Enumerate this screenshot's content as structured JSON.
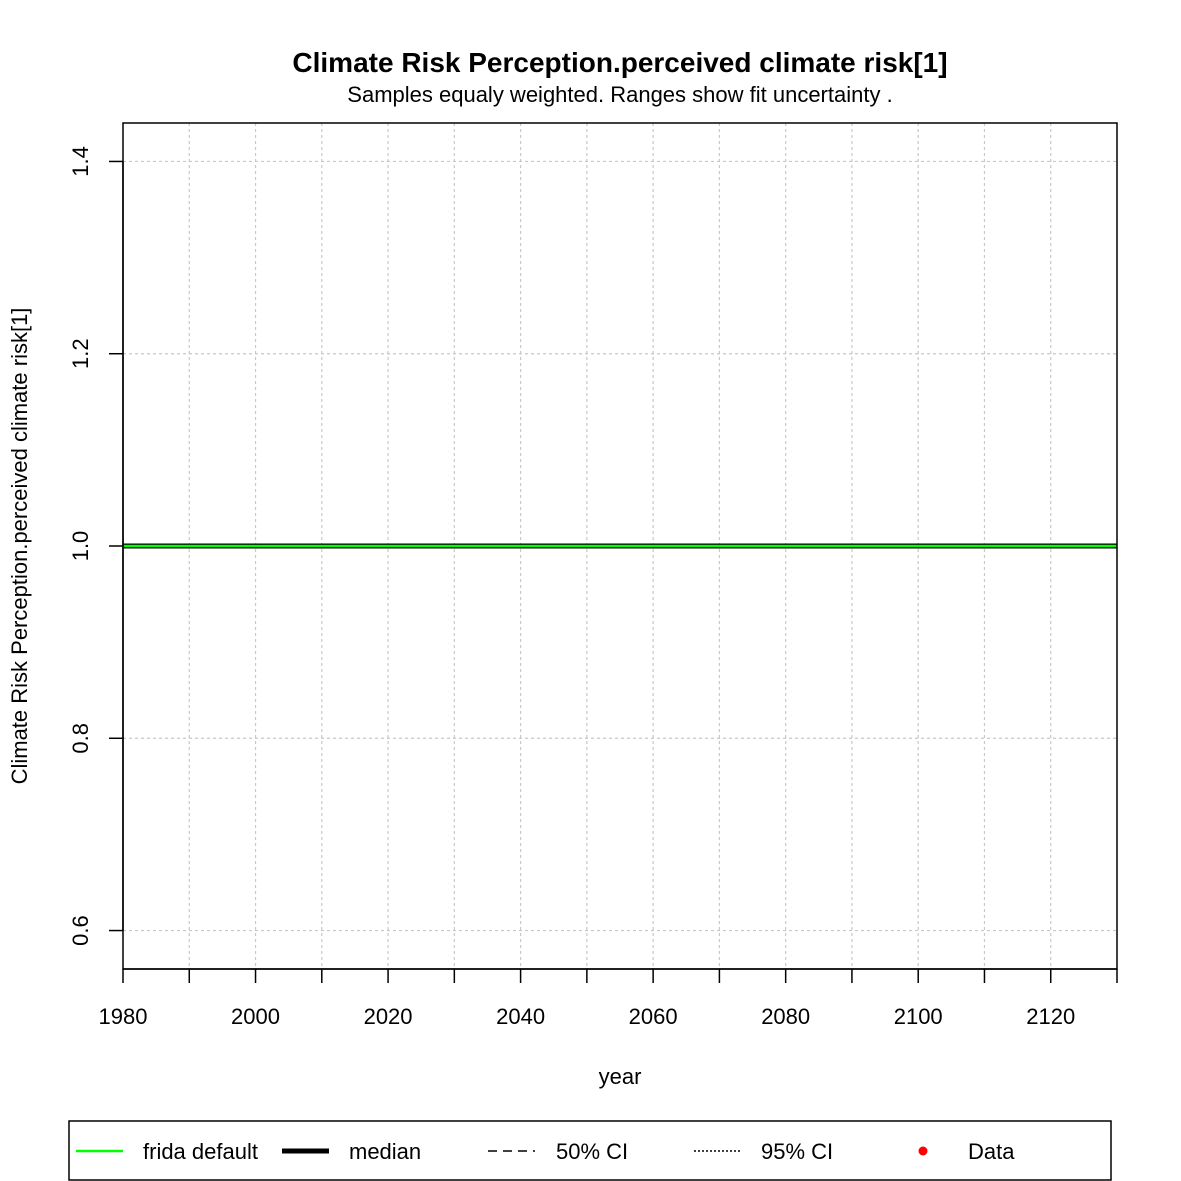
{
  "chart_data": {
    "type": "line",
    "title": "Climate Risk Perception.perceived climate risk[1]",
    "subtitle": "Samples equaly weighted. Ranges show  fit uncertainty .",
    "xlabel": "year",
    "ylabel": "Climate Risk Perception.perceived climate risk[1]",
    "xlim": [
      1980,
      2130
    ],
    "ylim": [
      0.56,
      1.44
    ],
    "x_ticks": [
      1980,
      2000,
      2020,
      2040,
      2060,
      2080,
      2100,
      2120
    ],
    "x_minor_ticks": [
      1990,
      2010,
      2030,
      2050,
      2070,
      2090,
      2110,
      2130
    ],
    "x_tick_labels": [
      "1980",
      "2000",
      "2020",
      "2040",
      "2060",
      "2080",
      "2100",
      "2120"
    ],
    "y_ticks": [
      0.6,
      0.8,
      1.0,
      1.2,
      1.4
    ],
    "y_tick_labels": [
      "0.6",
      "0.8",
      "1.0",
      "1.2",
      "1.4"
    ],
    "grid": true,
    "legend_position": "bottom",
    "series": [
      {
        "name": "frida default",
        "color": "#00ff00",
        "style": "solid",
        "x": [
          1980,
          2130
        ],
        "y": [
          1.0,
          1.0
        ]
      },
      {
        "name": "median",
        "color": "#000000",
        "style": "solid-thick",
        "x": [
          1980,
          2130
        ],
        "y": [
          1.0,
          1.0
        ]
      },
      {
        "name": "50% CI",
        "color": "#000000",
        "style": "dashed",
        "x": [],
        "y": []
      },
      {
        "name": "95% CI",
        "color": "#000000",
        "style": "dotted",
        "x": [],
        "y": []
      },
      {
        "name": "Data",
        "color": "#ff0000",
        "style": "points",
        "x": [],
        "y": []
      }
    ]
  }
}
